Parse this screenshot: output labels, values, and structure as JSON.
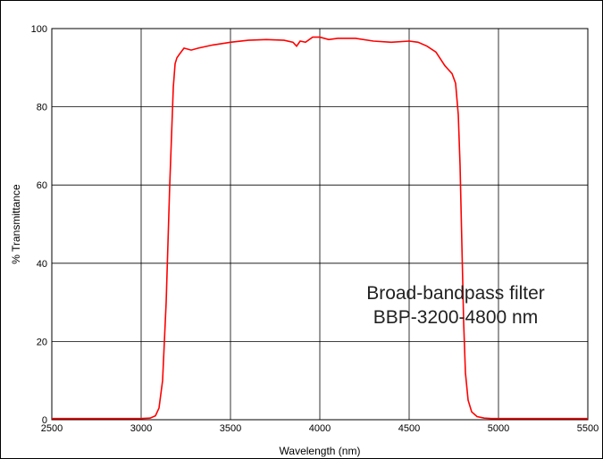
{
  "chart_data": {
    "type": "line",
    "title": "",
    "xlabel": "Wavelength (nm)",
    "ylabel": "% Transmittance",
    "xlim": [
      2500,
      5500
    ],
    "ylim": [
      0,
      100
    ],
    "x_ticks": [
      "2500",
      "3000",
      "3500",
      "4000",
      "4500",
      "5000",
      "5500"
    ],
    "y_ticks": [
      "0",
      "20",
      "40",
      "60",
      "80",
      "100"
    ],
    "grid": true,
    "legend": "none",
    "line_color": "#ff0000",
    "annotation": [
      "Broad-bandpass filter",
      "BBP-3200-4800 nm"
    ],
    "series": [
      {
        "x": [
          2500,
          2800,
          3000,
          3050,
          3080,
          3100,
          3120,
          3140,
          3160,
          3180,
          3190,
          3200,
          3215,
          3240,
          3280,
          3320,
          3400,
          3500,
          3600,
          3700,
          3800,
          3850,
          3870,
          3890,
          3920,
          3960,
          4000,
          4050,
          4100,
          4150,
          4200,
          4300,
          4400,
          4500,
          4550,
          4600,
          4650,
          4700,
          4720,
          4740,
          4760,
          4775,
          4785,
          4795,
          4805,
          4815,
          4830,
          4850,
          4880,
          4920,
          4960,
          5000,
          5100,
          5300,
          5500
        ],
        "y": [
          0.3,
          0.3,
          0.3,
          0.4,
          1.0,
          3.0,
          10,
          30,
          60,
          85,
          91,
          92.5,
          93.5,
          95,
          94.5,
          95,
          95.8,
          96.5,
          97,
          97.2,
          97,
          96.5,
          95.5,
          96.8,
          96.5,
          97.8,
          97.8,
          97.2,
          97.5,
          97.5,
          97.5,
          96.8,
          96.5,
          96.8,
          96.5,
          95.5,
          94,
          90.5,
          89.5,
          88.5,
          86,
          78,
          65,
          45,
          25,
          12,
          5,
          2,
          0.8,
          0.4,
          0.3,
          0.3,
          0.3,
          0.3,
          0.3
        ]
      }
    ]
  }
}
